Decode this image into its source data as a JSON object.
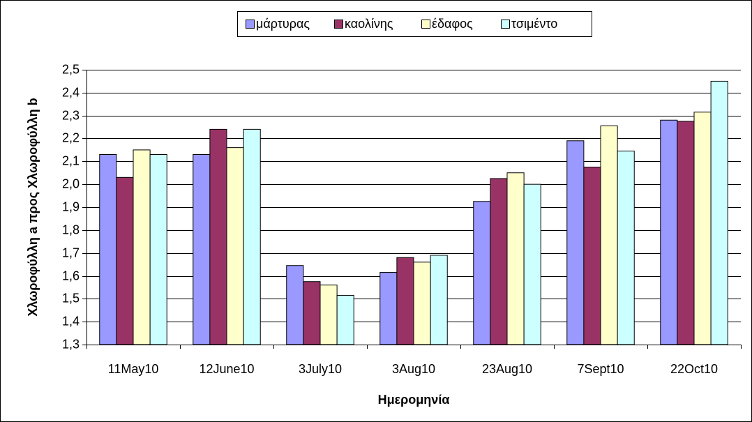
{
  "chart_data": {
    "type": "bar",
    "x_label": "Ημερομηνία",
    "y_label": "Χλωροφύλλη a προς Χλωροφύλλη b",
    "categories": [
      "11May10",
      "12June10",
      "3July10",
      "3Aug10",
      "23Aug10",
      "7Sept10",
      "22Oct10"
    ],
    "series": [
      {
        "name": "μάρτυρας",
        "color": "#9999ff",
        "values": [
          2.13,
          2.13,
          1.645,
          1.615,
          1.925,
          2.19,
          2.28
        ]
      },
      {
        "name": "καολίνης",
        "color": "#993366",
        "values": [
          2.03,
          2.24,
          1.575,
          1.68,
          2.025,
          2.075,
          2.275
        ]
      },
      {
        "name": "έδαφος",
        "color": "#ffffcc",
        "values": [
          2.15,
          2.16,
          1.56,
          1.66,
          2.05,
          2.255,
          2.315
        ]
      },
      {
        "name": "τσιμέντο",
        "color": "#ccffff",
        "values": [
          2.13,
          2.24,
          1.515,
          1.69,
          2.0,
          2.145,
          2.45
        ]
      }
    ],
    "ylim": [
      1.3,
      2.5
    ],
    "yticks": [
      {
        "value": 1.3,
        "label": "1,3"
      },
      {
        "value": 1.4,
        "label": "1,4"
      },
      {
        "value": 1.5,
        "label": "1,5"
      },
      {
        "value": 1.6,
        "label": "1,6"
      },
      {
        "value": 1.7,
        "label": "1,7"
      },
      {
        "value": 1.8,
        "label": "1,8"
      },
      {
        "value": 1.9,
        "label": "1,9"
      },
      {
        "value": 2.0,
        "label": "2,0"
      },
      {
        "value": 2.1,
        "label": "2,1"
      },
      {
        "value": 2.2,
        "label": "2,2"
      },
      {
        "value": 2.3,
        "label": "2,3"
      },
      {
        "value": 2.4,
        "label": "2,4"
      },
      {
        "value": 2.5,
        "label": "2,5"
      }
    ],
    "grid": true,
    "legend": "top"
  }
}
